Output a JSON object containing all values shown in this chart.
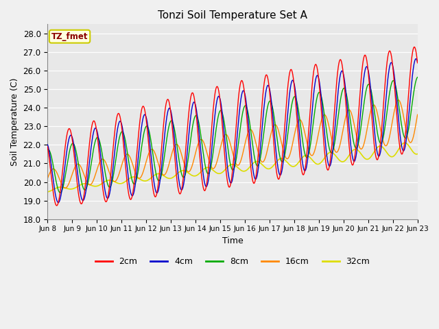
{
  "title": "Tonzi Soil Temperature Set A",
  "xlabel": "Time",
  "ylabel": "Soil Temperature (C)",
  "ylim": [
    18.0,
    28.5
  ],
  "yticks": [
    18.0,
    19.0,
    20.0,
    21.0,
    22.0,
    23.0,
    24.0,
    25.0,
    26.0,
    27.0,
    28.0
  ],
  "xtick_labels": [
    "Jun 8",
    "Jun 9",
    "Jun 10",
    "Jun 11",
    "Jun 12",
    "Jun 13",
    "Jun 14",
    "Jun 15",
    "Jun 16",
    "Jun 17",
    "Jun 18",
    "Jun 19",
    "Jun 20",
    "Jun 21",
    "Jun 22",
    "Jun 23"
  ],
  "colors": {
    "2cm": "#ff0000",
    "4cm": "#0000cc",
    "8cm": "#00aa00",
    "16cm": "#ff8800",
    "32cm": "#dddd00"
  },
  "legend_label": "TZ_fmet",
  "fig_facecolor": "#f0f0f0",
  "ax_facecolor": "#e8e8e8"
}
